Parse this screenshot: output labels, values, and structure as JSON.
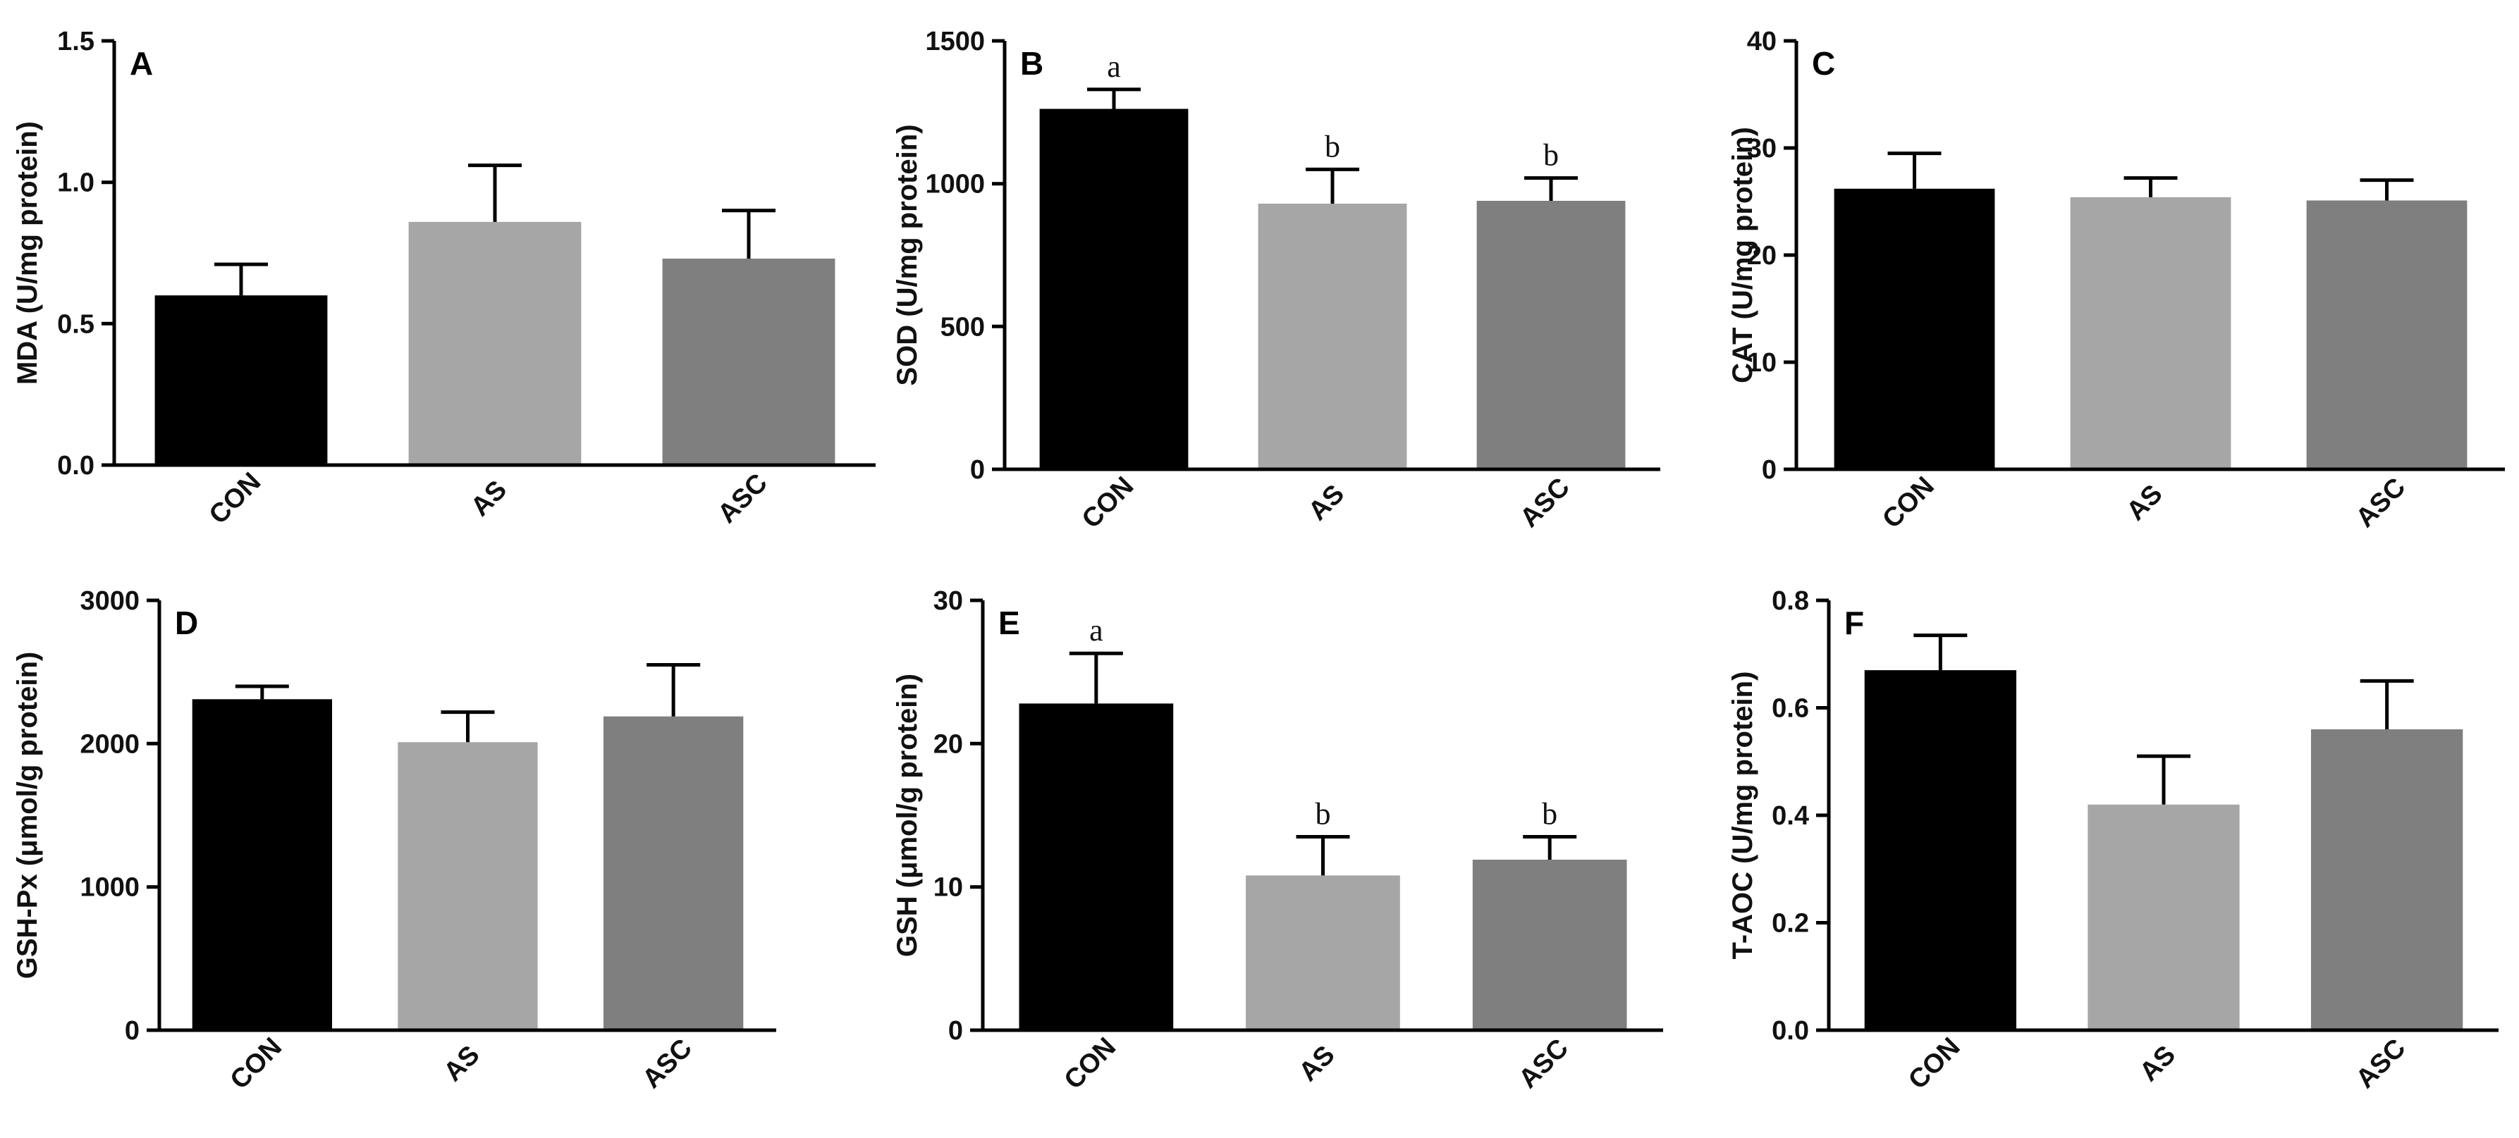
{
  "figure": {
    "panel_count": 6
  },
  "chart_data": [
    {
      "panel": "A",
      "type": "bar",
      "categories": [
        "CON",
        "AS",
        "ASC"
      ],
      "values": [
        0.6,
        0.86,
        0.73
      ],
      "errors": [
        0.11,
        0.2,
        0.17
      ],
      "significance": [
        "",
        "",
        ""
      ],
      "ylabel": "MDA (U/mg protein)",
      "ylim": [
        0,
        1.5
      ],
      "yticks": [
        0.0,
        0.5,
        1.0,
        1.5
      ],
      "ytick_labels": [
        "0.0",
        "0.5",
        "1.0",
        "1.5"
      ],
      "colors": [
        "#000000",
        "#a6a6a6",
        "#7f7f7f"
      ]
    },
    {
      "panel": "B",
      "type": "bar",
      "categories": [
        "CON",
        "AS",
        "ASC"
      ],
      "values": [
        1262,
        930,
        940
      ],
      "errors": [
        68,
        120,
        80
      ],
      "significance": [
        "a",
        "b",
        "b"
      ],
      "ylabel": "SOD (U/mg protein)",
      "ylim": [
        0,
        1500
      ],
      "yticks": [
        0,
        500,
        1000,
        1500
      ],
      "ytick_labels": [
        "0",
        "500",
        "1000",
        "1500"
      ],
      "colors": [
        "#000000",
        "#a6a6a6",
        "#7f7f7f"
      ]
    },
    {
      "panel": "C",
      "type": "bar",
      "categories": [
        "CON",
        "AS",
        "ASC"
      ],
      "values": [
        26.2,
        25.4,
        25.1
      ],
      "errors": [
        3.3,
        1.8,
        1.9
      ],
      "significance": [
        "",
        "",
        ""
      ],
      "ylabel": "CAT (U/mg protein)",
      "ylim": [
        0,
        40
      ],
      "yticks": [
        0,
        10,
        20,
        30,
        40
      ],
      "ytick_labels": [
        "0",
        "10",
        "20",
        "30",
        "40"
      ],
      "colors": [
        "#000000",
        "#a6a6a6",
        "#7f7f7f"
      ]
    },
    {
      "panel": "D",
      "type": "bar",
      "categories": [
        "CON",
        "AS",
        "ASC"
      ],
      "values": [
        2310,
        2010,
        2190
      ],
      "errors": [
        90,
        210,
        360
      ],
      "significance": [
        "",
        "",
        ""
      ],
      "ylabel": "GSH-Px (μmol/g protein)",
      "ylim": [
        0,
        3000
      ],
      "yticks": [
        0,
        1000,
        2000,
        3000
      ],
      "ytick_labels": [
        "0",
        "1000",
        "2000",
        "3000"
      ],
      "colors": [
        "#000000",
        "#a6a6a6",
        "#7f7f7f"
      ]
    },
    {
      "panel": "E",
      "type": "bar",
      "categories": [
        "CON",
        "AS",
        "ASC"
      ],
      "values": [
        22.8,
        10.8,
        11.9
      ],
      "errors": [
        3.5,
        2.7,
        1.6
      ],
      "significance": [
        "a",
        "b",
        "b"
      ],
      "ylabel": "GSH (μmol/g protein)",
      "ylim": [
        0,
        30
      ],
      "yticks": [
        0,
        10,
        20,
        30
      ],
      "ytick_labels": [
        "0",
        "10",
        "20",
        "30"
      ],
      "colors": [
        "#000000",
        "#a6a6a6",
        "#7f7f7f"
      ]
    },
    {
      "panel": "F",
      "type": "bar",
      "categories": [
        "CON",
        "AS",
        "ASC"
      ],
      "values": [
        0.67,
        0.42,
        0.56
      ],
      "errors": [
        0.065,
        0.09,
        0.09
      ],
      "significance": [
        "",
        "",
        ""
      ],
      "ylabel": "T-AOC (U/mg protein)",
      "ylim": [
        0,
        0.8
      ],
      "yticks": [
        0.0,
        0.2,
        0.4,
        0.6,
        0.8
      ],
      "ytick_labels": [
        "0.0",
        "0.2",
        "0.4",
        "0.6",
        "0.8"
      ],
      "colors": [
        "#000000",
        "#a6a6a6",
        "#7f7f7f"
      ]
    }
  ]
}
